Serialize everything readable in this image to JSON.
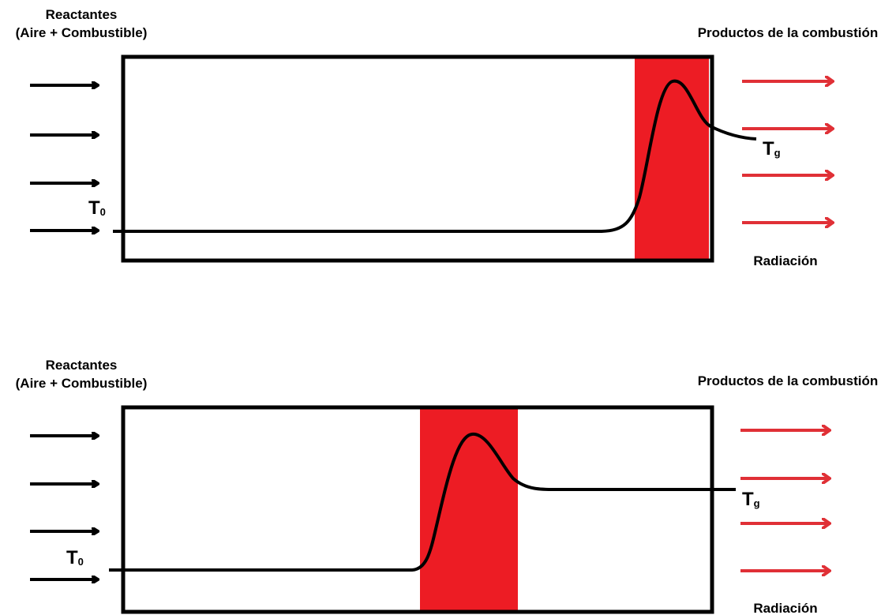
{
  "colors": {
    "outline": "#000000",
    "flame_zone": "#ed1c24",
    "product_arrow": "#e03036",
    "reactant_arrow": "#000000"
  },
  "panels": [
    {
      "reactants_line1": "Reactantes",
      "reactants_line2": "(Aire + Combustible)",
      "products": "Productos de la combustión",
      "radiation": "Radiación",
      "t_inlet": {
        "main": "T",
        "sub": "0"
      },
      "t_gas": {
        "main": "T",
        "sub": "g"
      }
    },
    {
      "reactants_line1": "Reactantes",
      "reactants_line2": "(Aire + Combustible)",
      "products": "Productos de la combustión",
      "radiation": "Radiación",
      "t_inlet": {
        "main": "T",
        "sub": "0"
      },
      "t_gas": {
        "main": "T",
        "sub": "g"
      }
    }
  ]
}
